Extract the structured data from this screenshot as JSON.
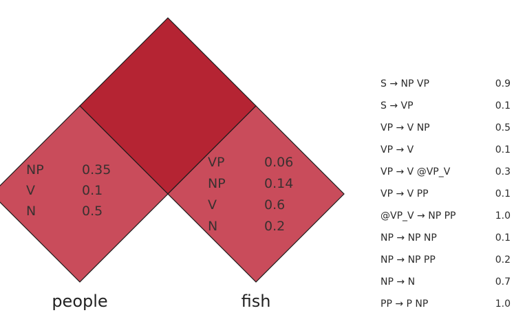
{
  "colors": {
    "top_cell": "#b52433",
    "bottom_cell": "#c94c5b",
    "edge": "#1a1a1a"
  },
  "cells": {
    "people": {
      "entries": [
        {
          "label": "NP",
          "prob": "0.35"
        },
        {
          "label": "V",
          "prob": "0.1"
        },
        {
          "label": "N",
          "prob": "0.5"
        }
      ]
    },
    "fish": {
      "entries": [
        {
          "label": "VP",
          "prob": "0.06"
        },
        {
          "label": "NP",
          "prob": "0.14"
        },
        {
          "label": "V",
          "prob": "0.6"
        },
        {
          "label": "N",
          "prob": "0.2"
        }
      ]
    }
  },
  "words": {
    "left": "people",
    "right": "fish"
  },
  "grammar": {
    "rules": [
      {
        "lhs": "S",
        "rhs": "NP VP",
        "prob": "0.9"
      },
      {
        "lhs": "S",
        "rhs": "VP",
        "prob": "0.1"
      },
      {
        "lhs": "VP",
        "rhs": "V NP",
        "prob": "0.5"
      },
      {
        "lhs": "VP",
        "rhs": "V",
        "prob": "0.1"
      },
      {
        "lhs": "VP",
        "rhs": "V @VP_V",
        "prob": "0.3"
      },
      {
        "lhs": "VP",
        "rhs": "V PP",
        "prob": "0.1"
      },
      {
        "lhs": "@VP_V",
        "rhs": "NP PP",
        "prob": "1.0"
      },
      {
        "lhs": "NP",
        "rhs": "NP NP",
        "prob": "0.1"
      },
      {
        "lhs": "NP",
        "rhs": "NP PP",
        "prob": "0.2"
      },
      {
        "lhs": "NP",
        "rhs": "N",
        "prob": "0.7"
      },
      {
        "lhs": "PP",
        "rhs": "P NP",
        "prob": "1.0"
      }
    ]
  }
}
